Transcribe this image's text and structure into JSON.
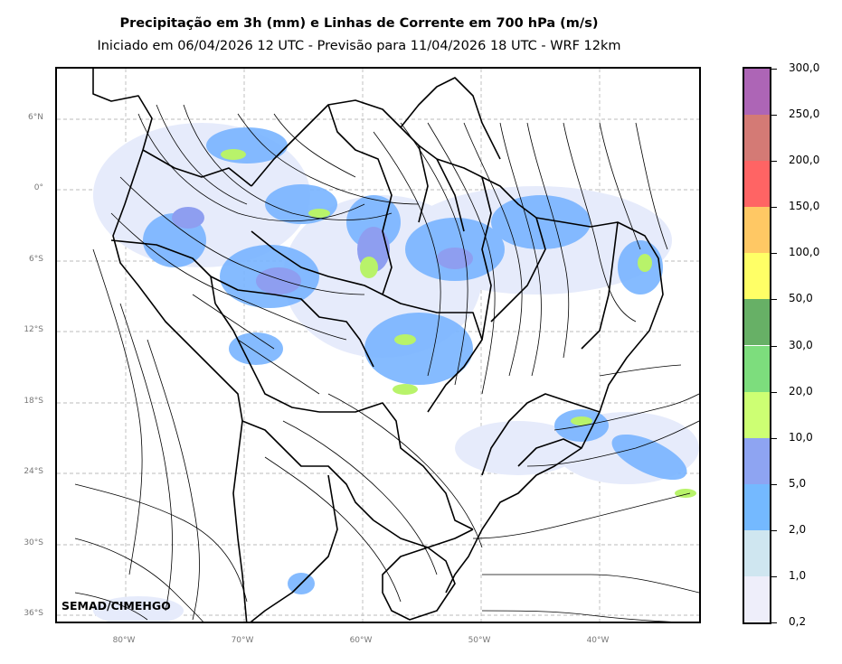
{
  "title": "Precipitação em 3h (mm) e Linhas de Corrente em 700 hPa (m/s)",
  "subtitle": "Iniciado em 06/04/2026 12 UTC - Previsão para 11/04/2026 18 UTC - WRF 12km",
  "credit": "SEMAD/CIMEHGO",
  "lat_labels": [
    "6°N",
    "0°",
    "6°S",
    "12°S",
    "18°S",
    "24°S",
    "30°S",
    "36°S"
  ],
  "lon_labels": [
    "80°W",
    "70°W",
    "60°W",
    "50°W",
    "40°W"
  ],
  "colorbar": {
    "labels": [
      "0,2",
      "1,0",
      "2,0",
      "5,0",
      "10,0",
      "20,0",
      "30,0",
      "50,0",
      "100,0",
      "150,0",
      "200,0",
      "250,0",
      "300,0"
    ],
    "colors": [
      "#eeeefa",
      "#cfe6f0",
      "#74b9ff",
      "#8ea4f2",
      "#cdff73",
      "#7ddd7d",
      "#67b066",
      "#ffff66",
      "#ffc864",
      "#ff6464",
      "#d47a75",
      "#ad65b6"
    ]
  },
  "map": {
    "grid_style": "dashed gray",
    "precip_colors": {
      "light": "#dfe6fb",
      "blue": "#78b4ff",
      "purple": "#8e9ef0",
      "green": "#b8f36a"
    }
  }
}
